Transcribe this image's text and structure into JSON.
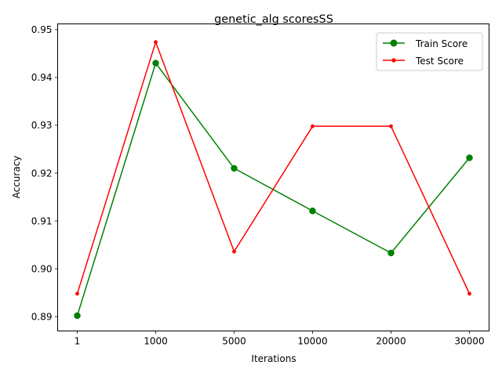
{
  "chart_data": {
    "type": "line",
    "title": "genetic_alg scoresSS",
    "xlabel": "Iterations",
    "ylabel": "Accuracy",
    "categories": [
      "1",
      "1000",
      "5000",
      "10000",
      "20000",
      "30000"
    ],
    "ylim": [
      0.887,
      0.9512
    ],
    "yticks": [
      0.89,
      0.9,
      0.91,
      0.92,
      0.93,
      0.94,
      0.95
    ],
    "ytick_labels": [
      "0.89",
      "0.90",
      "0.91",
      "0.92",
      "0.93",
      "0.94",
      "0.95"
    ],
    "grid": false,
    "legend_position": "top-right",
    "series": [
      {
        "name": "Train Score",
        "values": [
          0.8902,
          0.943,
          0.921,
          0.9121,
          0.9033,
          0.9232
        ],
        "color": "#008000",
        "marker": "circle-large"
      },
      {
        "name": "Test Score",
        "values": [
          0.8948,
          0.9474,
          0.9036,
          0.9298,
          0.9298,
          0.8948
        ],
        "color": "#ff0000",
        "marker": "circle-small"
      }
    ]
  }
}
